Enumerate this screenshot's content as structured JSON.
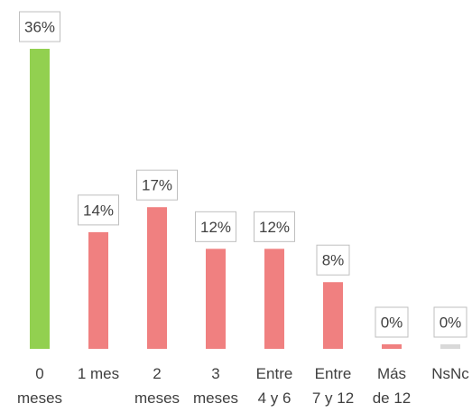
{
  "chart_data": {
    "type": "bar",
    "title": "",
    "xlabel": "",
    "ylabel": "",
    "ylim": [
      0,
      36
    ],
    "grid": false,
    "categories": [
      [
        "0",
        "meses"
      ],
      [
        "1 mes"
      ],
      [
        "2",
        "meses"
      ],
      [
        "3",
        "meses"
      ],
      [
        "Entre",
        "4 y 6"
      ],
      [
        "Entre",
        "7 y 12"
      ],
      [
        "Más",
        "de 12"
      ],
      [
        "NsNc"
      ]
    ],
    "values": [
      36,
      14,
      17,
      12,
      12,
      8,
      0,
      0
    ],
    "data_labels": [
      "36%",
      "14%",
      "17%",
      "12%",
      "12%",
      "8%",
      "0%",
      "0%"
    ],
    "colors": [
      "#92d050",
      "#f08080",
      "#f08080",
      "#f08080",
      "#f08080",
      "#f08080",
      "#f08080",
      "#d9d9d9"
    ]
  }
}
